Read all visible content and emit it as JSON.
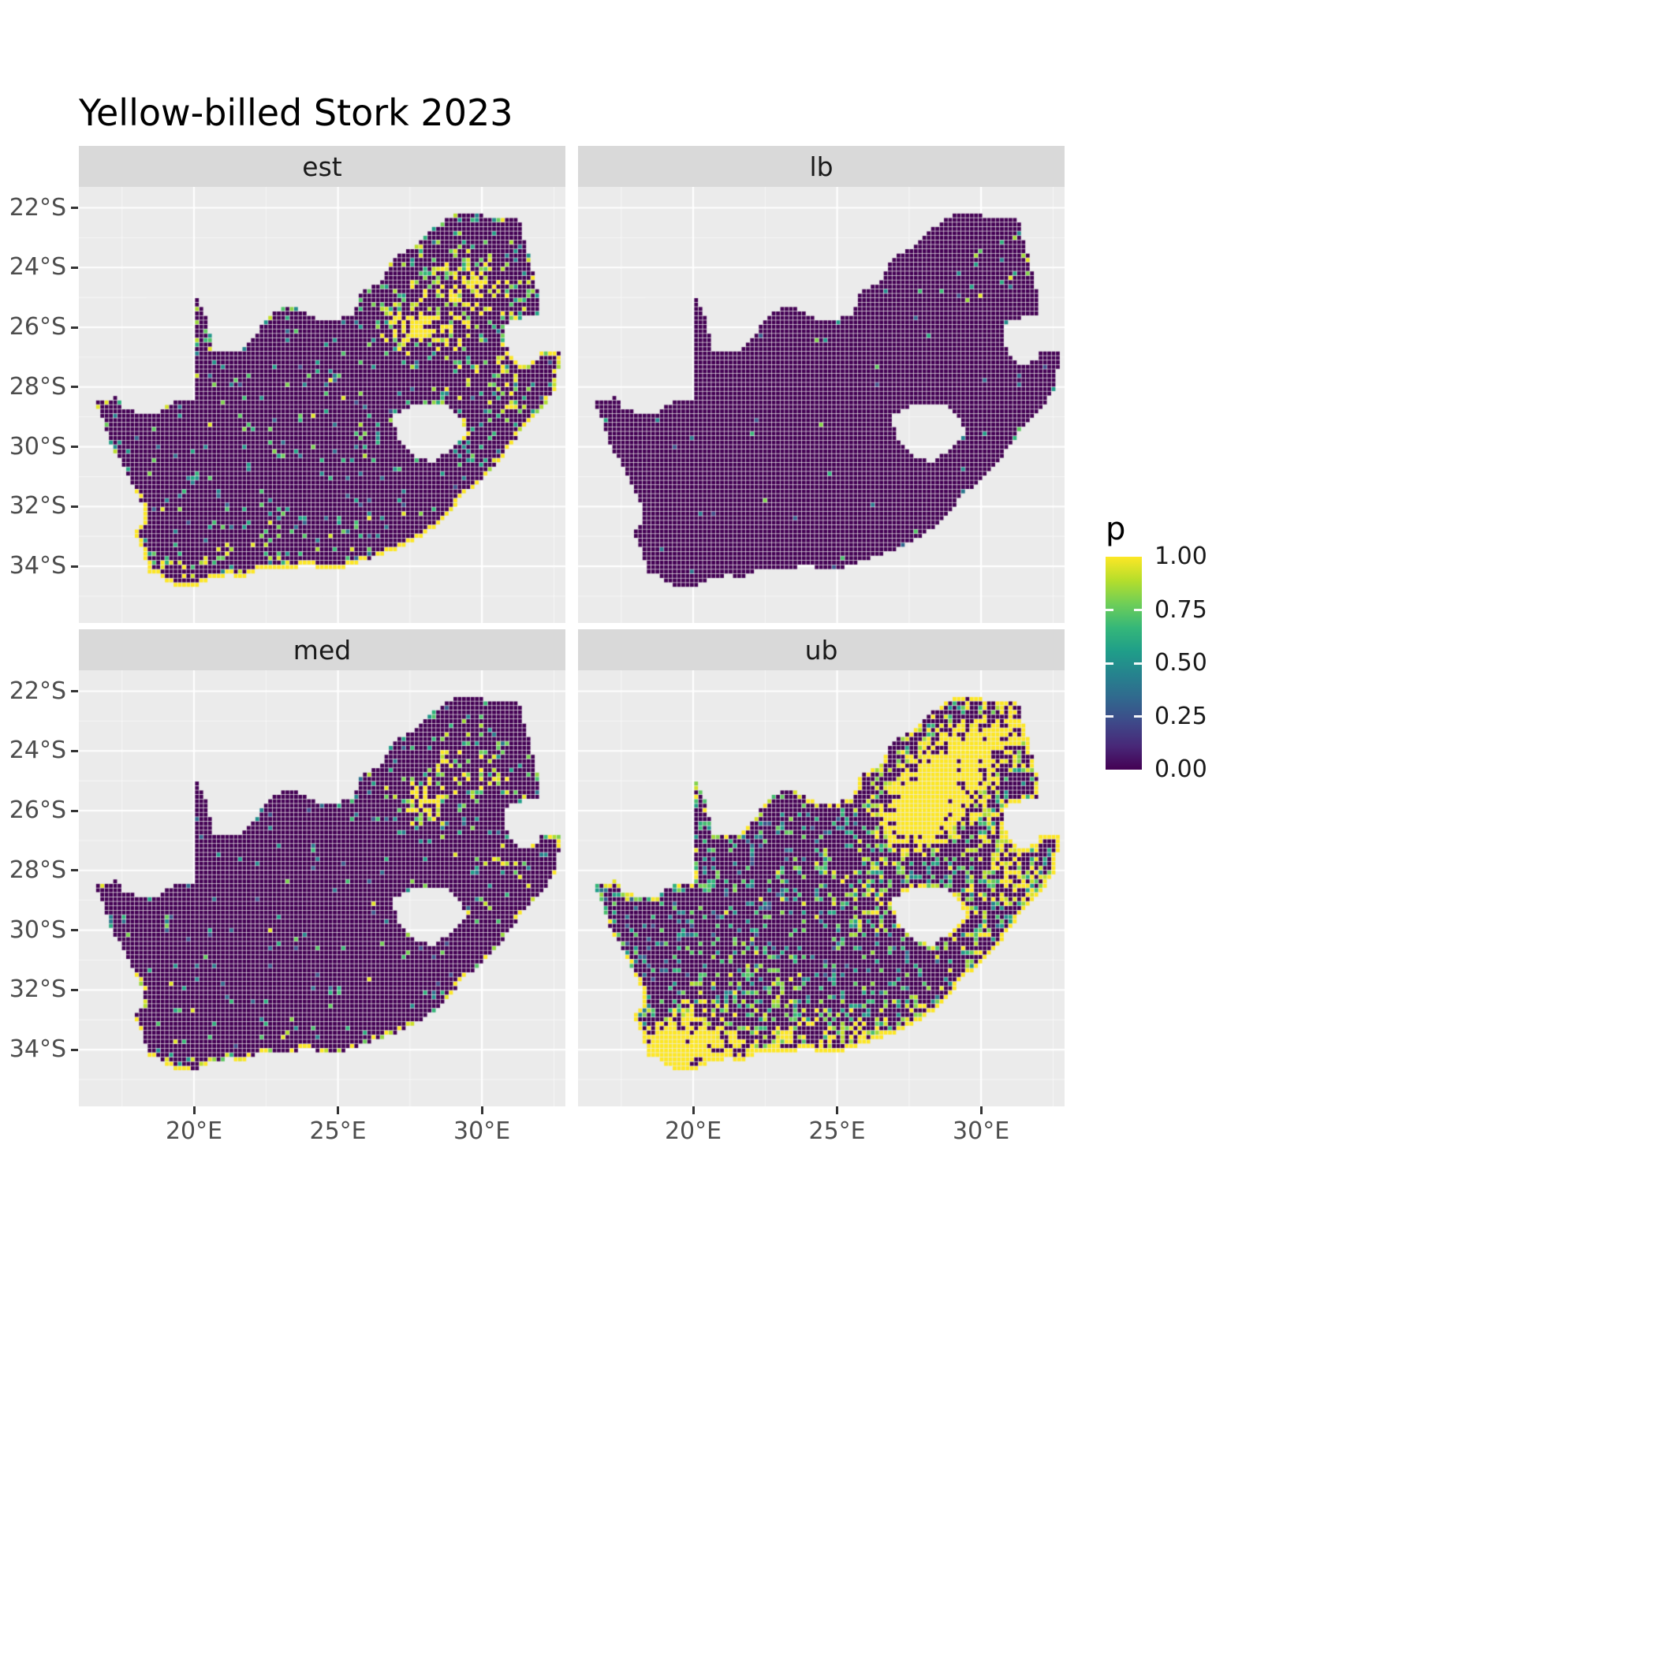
{
  "chart_data": {
    "type": "heatmap",
    "title": "Yellow-billed Stork 2023",
    "x_ticks": [
      "20°E",
      "25°E",
      "30°E"
    ],
    "x_tick_lons": [
      20,
      25,
      30
    ],
    "y_ticks": [
      "22°S",
      "24°S",
      "26°S",
      "28°S",
      "30°S",
      "32°S",
      "34°S"
    ],
    "y_tick_lats": [
      -22,
      -24,
      -26,
      -28,
      -30,
      -32,
      -34
    ],
    "legend": {
      "title": "p",
      "tick_labels": [
        "1.00",
        "0.75",
        "0.50",
        "0.25",
        "0.00"
      ],
      "tick_values": [
        1,
        0.75,
        0.5,
        0.25,
        0
      ]
    },
    "colormap": {
      "name": "viridis",
      "stops": [
        "#440154",
        "#482878",
        "#3e4989",
        "#31688e",
        "#26828e",
        "#1f9e89",
        "#35b779",
        "#6ece58",
        "#b5de2b",
        "#fde725"
      ]
    },
    "panel_bg": "#EBEBEB",
    "strip_bg": "#D9D9D9",
    "grid_major": "#FFFFFF",
    "lon_range": [
      16.0,
      32.9
    ],
    "lat_top": -21.3,
    "lat_bottom": -35.9,
    "lon_minor": [
      17.5,
      22.5,
      27.5,
      32.5
    ],
    "lat_minor": [
      -23,
      -25,
      -27,
      -29,
      -31,
      -33,
      -35
    ],
    "cell_size_deg": 0.1496,
    "facets": [
      {
        "label": "est",
        "seed": 101,
        "base": 0.055,
        "edge": {
          "base": 0.22,
          "south": 0.85,
          "east": 0.55
        },
        "hotspots": [
          [
            27.85,
            -25.95,
            0.5,
            1.0
          ],
          [
            28.3,
            -25.3,
            1.5,
            0.5
          ],
          [
            29.6,
            -24.3,
            1.4,
            0.38
          ],
          [
            30.8,
            -24.9,
            0.9,
            0.35
          ],
          [
            27.0,
            -26.3,
            0.8,
            0.35
          ],
          [
            29.3,
            -26.6,
            0.9,
            0.3
          ],
          [
            30.4,
            -27.6,
            0.8,
            0.35
          ],
          [
            28.6,
            -28.3,
            0.7,
            0.25
          ],
          [
            26.0,
            -29.7,
            0.6,
            0.3
          ],
          [
            25.0,
            -30.6,
            0.5,
            0.22
          ],
          [
            22.6,
            -33.6,
            1.0,
            0.25
          ],
          [
            19.2,
            -34.4,
            0.8,
            0.55
          ],
          [
            20.8,
            -34.2,
            0.8,
            0.3
          ],
          [
            24.6,
            -34.0,
            1.2,
            0.25
          ],
          [
            30.3,
            -29.7,
            0.8,
            0.3
          ],
          [
            31.0,
            -28.6,
            0.6,
            0.35
          ]
        ]
      },
      {
        "label": "lb",
        "seed": 202,
        "base": 0.005,
        "edge": {
          "base": 0.015,
          "south": 0.03,
          "east": 0.12
        },
        "hotspots": [
          [
            30.1,
            -24.2,
            1.0,
            0.1
          ],
          [
            31.4,
            -23.2,
            0.7,
            0.16
          ],
          [
            31.9,
            -24.6,
            0.5,
            0.12
          ],
          [
            28.0,
            -25.8,
            0.5,
            0.06
          ]
        ]
      },
      {
        "label": "med",
        "seed": 303,
        "base": 0.03,
        "edge": {
          "base": 0.12,
          "south": 0.5,
          "east": 0.35
        },
        "hotspots": [
          [
            27.9,
            -25.9,
            0.6,
            0.6
          ],
          [
            28.4,
            -25.2,
            1.3,
            0.38
          ],
          [
            29.7,
            -24.1,
            1.2,
            0.3
          ],
          [
            30.9,
            -24.8,
            0.7,
            0.28
          ],
          [
            30.5,
            -27.7,
            0.7,
            0.25
          ],
          [
            19.3,
            -34.4,
            0.7,
            0.45
          ],
          [
            23.3,
            -34.0,
            1.0,
            0.18
          ],
          [
            30.2,
            -29.5,
            0.7,
            0.2
          ],
          [
            31.1,
            -28.4,
            0.5,
            0.25
          ]
        ]
      },
      {
        "label": "ub",
        "seed": 404,
        "base": 0.17,
        "edge": {
          "base": 0.45,
          "south": 1.2,
          "east": 0.8
        },
        "hotspots": [
          [
            28.0,
            -25.9,
            1.1,
            1.15
          ],
          [
            28.6,
            -25.2,
            1.6,
            0.85
          ],
          [
            27.3,
            -26.6,
            1.2,
            0.75
          ],
          [
            29.8,
            -24.0,
            1.5,
            0.8
          ],
          [
            31.0,
            -23.3,
            0.9,
            0.7
          ],
          [
            30.9,
            -27.2,
            1.0,
            0.55
          ],
          [
            31.1,
            -28.5,
            0.9,
            0.55
          ],
          [
            29.2,
            -29.2,
            0.9,
            0.4
          ],
          [
            30.0,
            -30.6,
            0.8,
            0.45
          ],
          [
            26.3,
            -29.3,
            1.0,
            0.35
          ],
          [
            24.5,
            -28.3,
            1.2,
            0.25
          ],
          [
            21.8,
            -31.6,
            1.3,
            0.22
          ],
          [
            19.6,
            -33.9,
            1.2,
            1.0
          ],
          [
            18.9,
            -34.3,
            0.8,
            1.1
          ],
          [
            21.0,
            -34.1,
            1.3,
            0.6
          ],
          [
            23.3,
            -33.9,
            1.4,
            0.5
          ],
          [
            25.6,
            -33.8,
            1.4,
            0.45
          ],
          [
            27.8,
            -32.9,
            1.0,
            0.35
          ]
        ]
      }
    ],
    "map": {
      "outline": [
        [
          16.45,
          -28.6
        ],
        [
          16.78,
          -28.96
        ],
        [
          16.9,
          -29.4
        ],
        [
          17.1,
          -29.9
        ],
        [
          17.35,
          -30.35
        ],
        [
          17.6,
          -30.8
        ],
        [
          17.87,
          -31.3
        ],
        [
          18.18,
          -31.9
        ],
        [
          18.32,
          -32.45
        ],
        [
          18.05,
          -32.8
        ],
        [
          17.88,
          -33.05
        ],
        [
          18.3,
          -33.48
        ],
        [
          18.32,
          -33.92
        ],
        [
          18.48,
          -34.12
        ],
        [
          18.4,
          -34.36
        ],
        [
          18.86,
          -34.38
        ],
        [
          19.12,
          -34.62
        ],
        [
          19.62,
          -34.78
        ],
        [
          20.0,
          -34.82
        ],
        [
          20.55,
          -34.47
        ],
        [
          21.15,
          -34.38
        ],
        [
          21.85,
          -34.42
        ],
        [
          22.35,
          -34.1
        ],
        [
          23.05,
          -34.09
        ],
        [
          23.45,
          -34.12
        ],
        [
          24.05,
          -34.05
        ],
        [
          24.88,
          -34.22
        ],
        [
          25.4,
          -34.02
        ],
        [
          25.68,
          -33.95
        ],
        [
          26.45,
          -33.73
        ],
        [
          27.05,
          -33.48
        ],
        [
          27.92,
          -33.03
        ],
        [
          28.62,
          -32.58
        ],
        [
          29.35,
          -31.7
        ],
        [
          30.05,
          -31.08
        ],
        [
          30.72,
          -30.4
        ],
        [
          31.1,
          -29.85
        ],
        [
          31.78,
          -29.12
        ],
        [
          32.28,
          -28.55
        ],
        [
          32.58,
          -28.1
        ],
        [
          32.68,
          -27.45
        ],
        [
          32.82,
          -26.86
        ],
        [
          32.12,
          -26.84
        ],
        [
          31.97,
          -27.1
        ],
        [
          31.6,
          -27.3
        ],
        [
          31.15,
          -27.2
        ],
        [
          30.95,
          -26.9
        ],
        [
          30.8,
          -26.4
        ],
        [
          30.85,
          -25.95
        ],
        [
          31.1,
          -25.8
        ],
        [
          31.42,
          -25.72
        ],
        [
          31.96,
          -25.66
        ],
        [
          31.99,
          -25.15
        ],
        [
          31.9,
          -24.55
        ],
        [
          31.73,
          -23.88
        ],
        [
          31.53,
          -23.18
        ],
        [
          31.3,
          -22.42
        ],
        [
          30.83,
          -22.29
        ],
        [
          30.28,
          -22.35
        ],
        [
          29.66,
          -22.14
        ],
        [
          29.08,
          -22.2
        ],
        [
          28.5,
          -22.58
        ],
        [
          27.95,
          -23.06
        ],
        [
          27.55,
          -23.36
        ],
        [
          26.95,
          -23.66
        ],
        [
          26.5,
          -24.6
        ],
        [
          25.88,
          -24.74
        ],
        [
          25.55,
          -25.56
        ],
        [
          24.88,
          -25.8
        ],
        [
          24.18,
          -25.7
        ],
        [
          23.45,
          -25.32
        ],
        [
          22.85,
          -25.48
        ],
        [
          22.18,
          -26.2
        ],
        [
          21.65,
          -26.86
        ],
        [
          21.08,
          -26.87
        ],
        [
          20.73,
          -26.88
        ],
        [
          20.58,
          -26.25
        ],
        [
          20.38,
          -25.48
        ],
        [
          19.99,
          -24.77
        ],
        [
          19.98,
          -28.42
        ],
        [
          19.3,
          -28.52
        ],
        [
          18.78,
          -28.88
        ],
        [
          18.1,
          -28.9
        ],
        [
          17.6,
          -28.78
        ],
        [
          17.38,
          -28.38
        ],
        [
          16.9,
          -28.46
        ]
      ],
      "lesotho_hole": [
        [
          27.0,
          -28.92
        ],
        [
          27.58,
          -28.66
        ],
        [
          28.2,
          -28.7
        ],
        [
          28.68,
          -28.58
        ],
        [
          29.12,
          -28.92
        ],
        [
          29.38,
          -29.3
        ],
        [
          29.44,
          -29.58
        ],
        [
          29.18,
          -29.95
        ],
        [
          28.88,
          -30.16
        ],
        [
          28.35,
          -30.52
        ],
        [
          27.78,
          -30.46
        ],
        [
          27.38,
          -30.14
        ],
        [
          27.02,
          -29.62
        ],
        [
          26.96,
          -29.18
        ]
      ]
    }
  }
}
